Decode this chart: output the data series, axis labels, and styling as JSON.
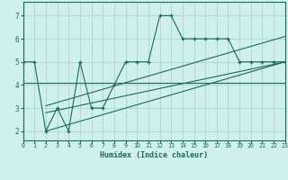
{
  "bg_color": "#cff0ee",
  "grid_color": "#b0ddd9",
  "line_color": "#1a6b5a",
  "xlabel_label": "Humidex (Indice chaleur)",
  "xlim": [
    0,
    23
  ],
  "ylim": [
    1.6,
    7.6
  ],
  "xticks": [
    0,
    1,
    2,
    3,
    4,
    5,
    6,
    7,
    8,
    9,
    10,
    11,
    12,
    13,
    14,
    15,
    16,
    17,
    18,
    19,
    20,
    21,
    22,
    23
  ],
  "yticks": [
    2,
    3,
    4,
    5,
    6,
    7
  ],
  "main_x": [
    0,
    1,
    2,
    3,
    4,
    5,
    6,
    7,
    8,
    9,
    10,
    11,
    12,
    13,
    14,
    15,
    16,
    17,
    18,
    19,
    20,
    21,
    22,
    23
  ],
  "main_y": [
    5,
    5,
    2,
    3,
    2,
    5,
    3,
    3,
    4,
    5,
    5,
    5,
    7,
    7,
    6,
    6,
    6,
    6,
    6,
    5,
    5,
    5,
    5,
    5
  ],
  "trend1_x": [
    0,
    23
  ],
  "trend1_y": [
    4.1,
    4.1
  ],
  "trend2_x": [
    2,
    23
  ],
  "trend2_y": [
    2.0,
    5.0
  ],
  "trend3_x": [
    2,
    23
  ],
  "trend3_y": [
    2.8,
    5.0
  ],
  "trend4_x": [
    2,
    23
  ],
  "trend4_y": [
    3.1,
    6.1
  ]
}
